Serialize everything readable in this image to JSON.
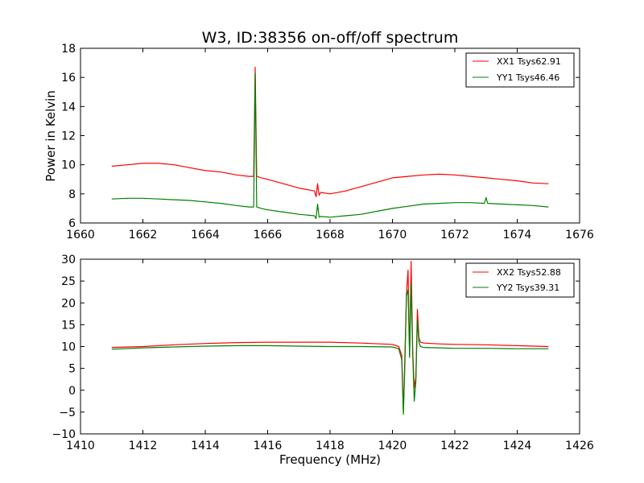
{
  "chart_data": [
    {
      "type": "line",
      "title": "W3, ID:38356 on-off/off spectrum",
      "xlabel": "",
      "ylabel": "Power in Kelvin",
      "xlim": [
        1660,
        1676
      ],
      "ylim": [
        6,
        18
      ],
      "xticks": [
        "1660",
        "1662",
        "1664",
        "1666",
        "1668",
        "1670",
        "1672",
        "1674",
        "1676"
      ],
      "yticks": [
        "6",
        "8",
        "10",
        "12",
        "14",
        "16",
        "18"
      ],
      "legend_position": "top-right",
      "series": [
        {
          "name": "XX1 Tsys62.91",
          "color": "#ff0000",
          "x": [
            1661.0,
            1661.5,
            1662.0,
            1662.5,
            1663.0,
            1663.5,
            1664.0,
            1664.5,
            1665.0,
            1665.4,
            1665.55,
            1665.6,
            1665.65,
            1665.8,
            1666.0,
            1666.5,
            1667.0,
            1667.5,
            1667.55,
            1667.6,
            1667.65,
            1667.7,
            1668.0,
            1668.5,
            1669.0,
            1669.5,
            1670.0,
            1670.5,
            1671.0,
            1671.5,
            1672.0,
            1672.5,
            1673.0,
            1673.5,
            1674.0,
            1674.5,
            1675.0
          ],
          "y": [
            9.9,
            10.0,
            10.1,
            10.1,
            10.0,
            9.8,
            9.6,
            9.5,
            9.3,
            9.2,
            9.2,
            16.7,
            9.2,
            9.1,
            9.0,
            8.7,
            8.4,
            8.2,
            7.8,
            8.7,
            7.9,
            8.1,
            8.0,
            8.2,
            8.5,
            8.8,
            9.1,
            9.2,
            9.3,
            9.35,
            9.3,
            9.2,
            9.1,
            9.0,
            8.9,
            8.75,
            8.7
          ]
        },
        {
          "name": "YY1 Tsys46.46",
          "color": "#008000",
          "x": [
            1661.0,
            1661.5,
            1662.0,
            1662.5,
            1663.0,
            1663.5,
            1664.0,
            1664.5,
            1665.0,
            1665.4,
            1665.55,
            1665.6,
            1665.65,
            1665.8,
            1666.0,
            1666.5,
            1667.0,
            1667.5,
            1667.55,
            1667.6,
            1667.65,
            1667.7,
            1668.0,
            1668.5,
            1669.0,
            1669.5,
            1670.0,
            1670.5,
            1671.0,
            1671.5,
            1672.0,
            1672.5,
            1672.95,
            1673.0,
            1673.05,
            1673.5,
            1674.0,
            1674.5,
            1675.0
          ],
          "y": [
            7.65,
            7.7,
            7.7,
            7.65,
            7.6,
            7.55,
            7.45,
            7.35,
            7.2,
            7.1,
            7.1,
            16.3,
            7.1,
            7.0,
            6.9,
            6.75,
            6.6,
            6.5,
            6.3,
            7.3,
            6.4,
            6.45,
            6.4,
            6.5,
            6.6,
            6.8,
            7.0,
            7.15,
            7.3,
            7.35,
            7.4,
            7.4,
            7.35,
            7.75,
            7.35,
            7.3,
            7.25,
            7.2,
            7.1
          ]
        }
      ]
    },
    {
      "type": "line",
      "title": "",
      "xlabel": "Frequency (MHz)",
      "ylabel": "",
      "xlim": [
        1410,
        1426
      ],
      "ylim": [
        -10,
        30
      ],
      "xticks": [
        "1410",
        "1412",
        "1414",
        "1416",
        "1418",
        "1420",
        "1422",
        "1424",
        "1426"
      ],
      "yticks": [
        "−10",
        "−5",
        "0",
        "5",
        "10",
        "15",
        "20",
        "25",
        "30"
      ],
      "legend_position": "top-right",
      "series": [
        {
          "name": "XX2 Tsys52.88",
          "color": "#ff0000",
          "x": [
            1411.0,
            1412.0,
            1413.0,
            1414.0,
            1415.0,
            1416.0,
            1417.0,
            1418.0,
            1419.0,
            1420.0,
            1420.2,
            1420.3,
            1420.35,
            1420.4,
            1420.45,
            1420.5,
            1420.55,
            1420.6,
            1420.65,
            1420.7,
            1420.75,
            1420.8,
            1420.85,
            1420.9,
            1421.0,
            1421.5,
            1422.0,
            1423.0,
            1424.0,
            1425.0
          ],
          "y": [
            9.8,
            10.0,
            10.4,
            10.7,
            10.9,
            11.0,
            11.0,
            11.0,
            10.8,
            10.5,
            10.0,
            8.0,
            -5.0,
            8.0,
            22.0,
            27.5,
            8.0,
            29.5,
            9.0,
            0.5,
            3.0,
            18.5,
            12.0,
            11.0,
            10.8,
            10.6,
            10.5,
            10.4,
            10.2,
            10.0
          ]
        },
        {
          "name": "YY2 Tsys39.31",
          "color": "#008000",
          "x": [
            1411.0,
            1412.0,
            1413.0,
            1414.0,
            1415.0,
            1416.0,
            1417.0,
            1418.0,
            1419.0,
            1420.0,
            1420.2,
            1420.3,
            1420.35,
            1420.4,
            1420.45,
            1420.5,
            1420.55,
            1420.6,
            1420.65,
            1420.7,
            1420.75,
            1420.8,
            1420.85,
            1420.9,
            1421.0,
            1421.5,
            1422.0,
            1423.0,
            1424.0,
            1425.0
          ],
          "y": [
            9.4,
            9.7,
            9.9,
            10.1,
            10.2,
            10.2,
            10.1,
            10.0,
            10.0,
            9.9,
            9.5,
            7.0,
            -5.5,
            6.0,
            21.5,
            23.0,
            7.5,
            24.5,
            8.0,
            -2.5,
            2.0,
            16.0,
            11.0,
            10.0,
            9.8,
            9.7,
            9.6,
            9.6,
            9.5,
            9.5
          ]
        }
      ]
    }
  ]
}
